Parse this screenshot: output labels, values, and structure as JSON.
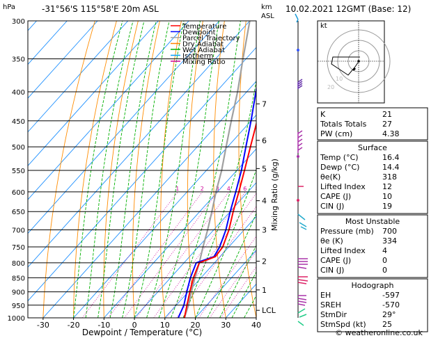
{
  "header": {
    "location": "-31°56'S  115°58'E  20m  ASL",
    "datetime": "10.02.2021  12GMT  (Base: 12)",
    "hpa_label": "hPa",
    "km_label": "km",
    "asl_label": "ASL"
  },
  "axes": {
    "xlabel": "Dewpoint / Temperature (°C)",
    "mixing_label": "Mixing Ratio (g/kg)",
    "pressure_ticks": [
      "300",
      "350",
      "400",
      "450",
      "500",
      "550",
      "600",
      "650",
      "700",
      "750",
      "800",
      "850",
      "900",
      "950",
      "1000"
    ],
    "temp_ticks": [
      "-30",
      "-20",
      "-10",
      "0",
      "10",
      "20",
      "30",
      "40"
    ],
    "km_ticks": [
      "7",
      "6",
      "5",
      "4",
      "3",
      "2",
      "1",
      "LCL"
    ],
    "mixing_ticks": [
      "1",
      "2",
      "3",
      "4",
      "6",
      "8",
      "10",
      "16",
      "20",
      "25"
    ]
  },
  "legend": {
    "items": [
      {
        "label": "Temperature",
        "color": "#ff0000"
      },
      {
        "label": "Dewpoint",
        "color": "#0000ff"
      },
      {
        "label": "Parcel Trajectory",
        "color": "#a0a0a0"
      },
      {
        "label": "Dry Adiabat",
        "color": "#ff8000"
      },
      {
        "label": "Wet Adiabat",
        "color": "#00b000"
      },
      {
        "label": "Isotherm",
        "color": "#00a0ff"
      },
      {
        "label": "Mixing Ratio",
        "color": "#cc0099"
      }
    ]
  },
  "chart_data": {
    "type": "skewt",
    "pressure_range_hpa": [
      1000,
      300
    ],
    "temp_range_c": [
      -35,
      40
    ],
    "temperature": [
      {
        "p": 1000,
        "t": 16.4
      },
      {
        "p": 950,
        "t": 13.5
      },
      {
        "p": 900,
        "t": 10.5
      },
      {
        "p": 850,
        "t": 7.5
      },
      {
        "p": 800,
        "t": 5.0
      },
      {
        "p": 780,
        "t": 8.5
      },
      {
        "p": 750,
        "t": 8.0
      },
      {
        "p": 700,
        "t": 5.0
      },
      {
        "p": 650,
        "t": 1.0
      },
      {
        "p": 600,
        "t": -3.0
      },
      {
        "p": 550,
        "t": -7.5
      },
      {
        "p": 500,
        "t": -12.5
      },
      {
        "p": 450,
        "t": -18.0
      },
      {
        "p": 400,
        "t": -24.0
      },
      {
        "p": 350,
        "t": -31.0
      },
      {
        "p": 300,
        "t": -39.0
      }
    ],
    "dewpoint": [
      {
        "p": 1000,
        "t": 14.4
      },
      {
        "p": 950,
        "t": 12.5
      },
      {
        "p": 900,
        "t": 9.5
      },
      {
        "p": 850,
        "t": 6.5
      },
      {
        "p": 800,
        "t": 4.0
      },
      {
        "p": 780,
        "t": 8.0
      },
      {
        "p": 750,
        "t": 7.0
      },
      {
        "p": 700,
        "t": 4.0
      },
      {
        "p": 650,
        "t": 0.0
      },
      {
        "p": 600,
        "t": -4.0
      },
      {
        "p": 550,
        "t": -8.5
      },
      {
        "p": 500,
        "t": -14.0
      },
      {
        "p": 450,
        "t": -20.0
      },
      {
        "p": 400,
        "t": -27.0
      },
      {
        "p": 350,
        "t": -35.0
      },
      {
        "p": 300,
        "t": -43.0
      }
    ],
    "parcel": [
      {
        "p": 1000,
        "t": 16.4
      },
      {
        "p": 950,
        "t": 14.0
      },
      {
        "p": 900,
        "t": 11.0
      },
      {
        "p": 850,
        "t": 8.0
      },
      {
        "p": 800,
        "t": 5.0
      },
      {
        "p": 750,
        "t": 1.5
      },
      {
        "p": 700,
        "t": -2.0
      },
      {
        "p": 650,
        "t": -6.0
      },
      {
        "p": 600,
        "t": -10.5
      },
      {
        "p": 550,
        "t": -15.0
      },
      {
        "p": 500,
        "t": -20.5
      },
      {
        "p": 450,
        "t": -26.5
      },
      {
        "p": 400,
        "t": -33.0
      },
      {
        "p": 350,
        "t": -41.0
      },
      {
        "p": 300,
        "t": -50.0
      }
    ],
    "km_levels": [
      {
        "label": "7",
        "p": 420
      },
      {
        "label": "6",
        "p": 487
      },
      {
        "label": "5",
        "p": 546
      },
      {
        "label": "4",
        "p": 622
      },
      {
        "label": "3",
        "p": 700
      },
      {
        "label": "2",
        "p": 795
      },
      {
        "label": "1",
        "p": 893
      },
      {
        "label": "LCL",
        "p": 970
      }
    ]
  },
  "hodograph": {
    "label": "kt",
    "rings": [
      "10",
      "20",
      "30"
    ]
  },
  "indices": {
    "rows": [
      {
        "label": "K",
        "value": "21"
      },
      {
        "label": "Totals Totals",
        "value": "27"
      },
      {
        "label": "PW (cm)",
        "value": "4.38"
      }
    ],
    "surface": {
      "title": "Surface",
      "rows": [
        {
          "label": "Temp (°C)",
          "value": "16.4"
        },
        {
          "label": "Dewp (°C)",
          "value": "14.4"
        },
        {
          "label": "θe(K)",
          "value": "318"
        },
        {
          "label": "Lifted Index",
          "value": "12"
        },
        {
          "label": "CAPE (J)",
          "value": "10"
        },
        {
          "label": "CIN (J)",
          "value": "19"
        }
      ]
    },
    "most_unstable": {
      "title": "Most Unstable",
      "rows": [
        {
          "label": "Pressure (mb)",
          "value": "700"
        },
        {
          "label": "θe (K)",
          "value": "334"
        },
        {
          "label": "Lifted Index",
          "value": "4"
        },
        {
          "label": "CAPE (J)",
          "value": "0"
        },
        {
          "label": "CIN (J)",
          "value": "0"
        }
      ]
    },
    "hodograph_box": {
      "title": "Hodograph",
      "rows": [
        {
          "label": "EH",
          "value": "-597"
        },
        {
          "label": "SREH",
          "value": "-570"
        },
        {
          "label": "StmDir",
          "value": "29°"
        },
        {
          "label": "StmSpd (kt)",
          "value": "25"
        }
      ]
    }
  },
  "footer": {
    "copyright": "© weatheronline.co.uk"
  }
}
